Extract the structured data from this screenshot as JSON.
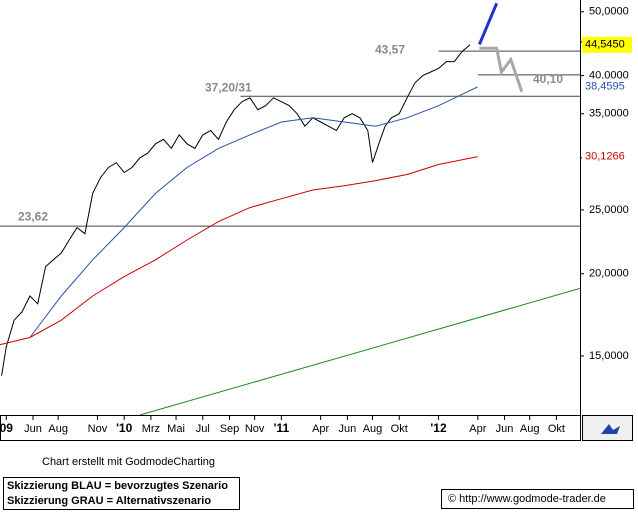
{
  "chart_data": {
    "type": "line",
    "log_scale": true,
    "xlim": [
      2009.21,
      2012.9
    ],
    "ylim": [
      12.2,
      52.1
    ],
    "xticks": [
      {
        "value": 2009.25,
        "label": "09"
      },
      {
        "value": 2009.42,
        "label": "Jun"
      },
      {
        "value": 2009.58,
        "label": "Aug"
      },
      {
        "value": 2009.83,
        "label": "Nov"
      },
      {
        "value": 2010.0,
        "label": "'10"
      },
      {
        "value": 2010.17,
        "label": "Mrz"
      },
      {
        "value": 2010.33,
        "label": "Mai"
      },
      {
        "value": 2010.5,
        "label": "Jul"
      },
      {
        "value": 2010.67,
        "label": "Sep"
      },
      {
        "value": 2010.83,
        "label": "Nov"
      },
      {
        "value": 2011.0,
        "label": "'11"
      },
      {
        "value": 2011.25,
        "label": "Apr"
      },
      {
        "value": 2011.42,
        "label": "Jun"
      },
      {
        "value": 2011.58,
        "label": "Aug"
      },
      {
        "value": 2011.75,
        "label": "Okt"
      },
      {
        "value": 2012.0,
        "label": "'12"
      },
      {
        "value": 2012.25,
        "label": "Apr"
      },
      {
        "value": 2012.42,
        "label": "Jun"
      },
      {
        "value": 2012.58,
        "label": "Aug"
      },
      {
        "value": 2012.75,
        "label": "Okt"
      }
    ],
    "yticks": [
      {
        "value": 15,
        "label": "15,0000"
      },
      {
        "value": 20,
        "label": "20,0000"
      },
      {
        "value": 25,
        "label": "25,0000"
      },
      {
        "value": 30,
        "label": "30,0000"
      },
      {
        "value": 35,
        "label": "35,0000"
      },
      {
        "value": 40,
        "label": "40,0000"
      },
      {
        "value": 45,
        "label": "45,0000"
      },
      {
        "value": 50,
        "label": "50,0000"
      }
    ],
    "series": [
      {
        "color": "#000000",
        "x": [
          2009.22,
          2009.25,
          2009.3,
          2009.35,
          2009.4,
          2009.45,
          2009.5,
          2009.55,
          2009.6,
          2009.65,
          2009.7,
          2009.75,
          2009.8,
          2009.85,
          2009.9,
          2009.95,
          2010.0,
          2010.05,
          2010.1,
          2010.15,
          2010.2,
          2010.25,
          2010.3,
          2010.35,
          2010.4,
          2010.45,
          2010.5,
          2010.55,
          2010.6,
          2010.65,
          2010.7,
          2010.75,
          2010.8,
          2010.85,
          2010.9,
          2010.95,
          2011.0,
          2011.05,
          2011.1,
          2011.15,
          2011.2,
          2011.25,
          2011.3,
          2011.35,
          2011.4,
          2011.45,
          2011.5,
          2011.55,
          2011.58,
          2011.62,
          2011.66,
          2011.7,
          2011.75,
          2011.8,
          2011.85,
          2011.9,
          2011.95,
          2012.0,
          2012.05,
          2012.1,
          2012.15,
          2012.2
        ],
        "values": [
          14.0,
          15.5,
          17.0,
          17.5,
          18.5,
          18.0,
          20.5,
          21.0,
          21.5,
          22.5,
          23.5,
          23.0,
          26.5,
          28.0,
          29.0,
          29.5,
          28.5,
          29.0,
          30.0,
          30.5,
          31.5,
          32.0,
          31.0,
          32.5,
          31.5,
          31.0,
          32.5,
          33.0,
          32.0,
          34.0,
          35.5,
          36.5,
          37.0,
          35.5,
          36.0,
          37.0,
          36.5,
          36.0,
          35.0,
          33.5,
          34.5,
          34.0,
          33.5,
          33.0,
          34.5,
          35.0,
          34.5,
          33.0,
          29.5,
          31.5,
          33.5,
          34.5,
          35.0,
          37.0,
          39.0,
          40.0,
          40.5,
          41.0,
          42.0,
          42.0,
          43.5,
          44.545
        ],
        "end_label": "44,5450"
      },
      {
        "color": "#2b4fa8",
        "x": [
          2009.4,
          2009.6,
          2009.8,
          2010.0,
          2010.2,
          2010.4,
          2010.6,
          2010.8,
          2011.0,
          2011.2,
          2011.4,
          2011.6,
          2011.8,
          2012.0,
          2012.25
        ],
        "values": [
          16.0,
          18.5,
          21.0,
          23.5,
          26.5,
          29.0,
          31.0,
          32.5,
          34.0,
          34.5,
          34.0,
          33.5,
          34.5,
          36.0,
          38.4595
        ],
        "end_label": "38,4595"
      },
      {
        "color": "#cc0000",
        "x": [
          2009.21,
          2009.4,
          2009.6,
          2009.8,
          2010.0,
          2010.2,
          2010.4,
          2010.6,
          2010.8,
          2011.0,
          2011.2,
          2011.4,
          2011.6,
          2011.8,
          2012.0,
          2012.25
        ],
        "values": [
          15.6,
          16.0,
          17.0,
          18.5,
          19.8,
          21.0,
          22.5,
          24.0,
          25.2,
          26.0,
          26.8,
          27.2,
          27.7,
          28.3,
          29.3,
          30.1266
        ],
        "end_label": "30,1266"
      },
      {
        "color": "#1a8a1a",
        "x": [
          2010.1,
          2012.9
        ],
        "values": [
          12.2,
          19.0
        ]
      }
    ],
    "scenarios": [
      {
        "color": "#2233cc",
        "x": [
          2012.26,
          2012.37
        ],
        "values": [
          44.6,
          51.5
        ]
      },
      {
        "color": "#a8a8a8",
        "x": [
          2012.26,
          2012.37,
          2012.4,
          2012.46,
          2012.53
        ],
        "values": [
          44.0,
          44.0,
          40.5,
          42.3,
          37.8
        ]
      }
    ],
    "levels": [
      {
        "value": 23.62,
        "label": "23,62",
        "x": [
          2009.21,
          2012.9
        ]
      },
      {
        "value": 37.2,
        "label": "37,20/31",
        "x": [
          2010.74,
          2012.9
        ]
      },
      {
        "value": 43.57,
        "label": "43,57",
        "x": [
          2012.0,
          2012.9
        ]
      },
      {
        "value": 40.1,
        "label": "40,10",
        "x": [
          2012.25,
          2012.9
        ]
      }
    ],
    "credit": "Chart erstellt mit GodmodeCharting",
    "legend_lines": [
      "Skizzierung BLAU = bevorzugtes Szenario",
      "Skizzierung GRAU = Alternativszenario"
    ],
    "url": "© http://www.godmode-trader.de"
  }
}
